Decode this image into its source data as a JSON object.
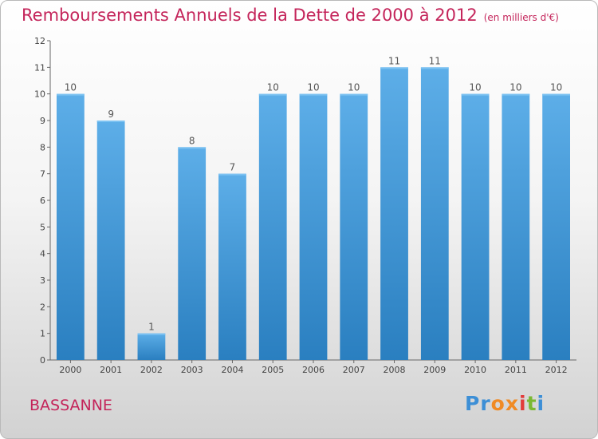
{
  "header": {
    "title": "Remboursements Annuels de la Dette de 2000 à 2012",
    "unit": "(en milliers d'€)"
  },
  "footer": {
    "place": "BASSANNE",
    "logo": "Proxiti",
    "logo_colors": [
      "#3d8fd6",
      "#3d8fd6",
      "#f08a24",
      "#f08a24",
      "#e23b3b",
      "#7ab833",
      "#3d8fd6"
    ]
  },
  "chart_data": {
    "type": "bar",
    "categories": [
      "2000",
      "2001",
      "2002",
      "2003",
      "2004",
      "2005",
      "2006",
      "2007",
      "2008",
      "2009",
      "2010",
      "2011",
      "2012"
    ],
    "values": [
      10,
      9,
      1,
      8,
      7,
      10,
      10,
      10,
      11,
      11,
      10,
      10,
      10
    ],
    "data_labels": [
      "10",
      "9",
      "1",
      "8",
      "7",
      "10",
      "10",
      "10",
      "11",
      "11",
      "10",
      "10",
      "10"
    ],
    "y_ticks": [
      0,
      1,
      2,
      3,
      4,
      5,
      6,
      7,
      8,
      9,
      10,
      11,
      12
    ],
    "ylim": [
      0,
      12
    ],
    "grid": false,
    "bar_color_top": "#5daee8",
    "bar_color_bottom": "#2a7fc0"
  }
}
